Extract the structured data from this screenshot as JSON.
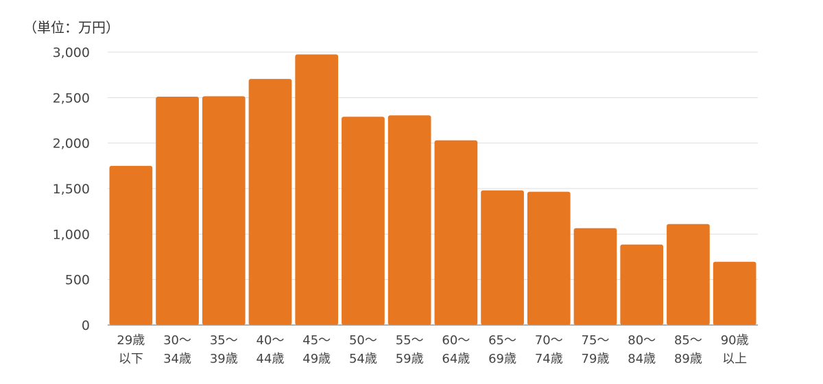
{
  "chart_data": {
    "type": "bar",
    "unit_label": "（単位：万円）",
    "categories": [
      [
        "29歳",
        "以下"
      ],
      [
        "30～",
        "34歳"
      ],
      [
        "35～",
        "39歳"
      ],
      [
        "40～",
        "44歳"
      ],
      [
        "45～",
        "49歳"
      ],
      [
        "50～",
        "54歳"
      ],
      [
        "55～",
        "59歳"
      ],
      [
        "60～",
        "64歳"
      ],
      [
        "65～",
        "69歳"
      ],
      [
        "70～",
        "74歳"
      ],
      [
        "75～",
        "79歳"
      ],
      [
        "80～",
        "84歳"
      ],
      [
        "85～",
        "89歳"
      ],
      [
        "90歳",
        "以上"
      ]
    ],
    "values": [
      1750,
      2510,
      2515,
      2705,
      2975,
      2290,
      2305,
      2030,
      1480,
      1465,
      1065,
      885,
      1110,
      695
    ],
    "ylim": [
      0,
      3000
    ],
    "yticks": [
      "0",
      "500",
      "1,000",
      "1,500",
      "2,000",
      "2,500",
      "3,000"
    ],
    "grid": true,
    "bar_color": "#E87722",
    "grid_color": "#dddddd",
    "axis_color": "#999999"
  }
}
